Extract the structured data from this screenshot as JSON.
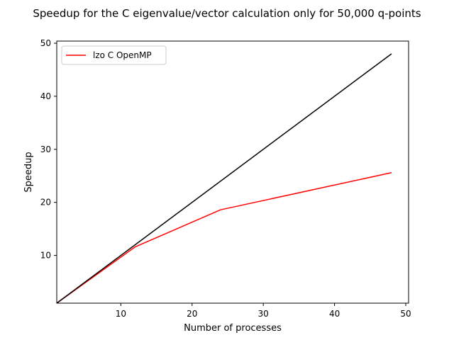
{
  "chart_data": {
    "type": "line",
    "title": "Speedup for the C eigenvalue/vector calculation only for 50,000 q-points",
    "xlabel": "Number of processes",
    "ylabel": "Speedup",
    "xlim": [
      1,
      50.4
    ],
    "ylim": [
      1,
      50.4
    ],
    "xticks": [
      10,
      20,
      30,
      40,
      50
    ],
    "yticks": [
      10,
      20,
      30,
      40,
      50
    ],
    "legend_position": "top-left",
    "series": [
      {
        "name": "lzo C OpenMP",
        "color": "#ff0000",
        "x": [
          1,
          12,
          24,
          48
        ],
        "y": [
          1,
          11.6,
          18.6,
          25.6
        ]
      },
      {
        "color": "#000000",
        "x": [
          1,
          48
        ],
        "y": [
          1,
          48
        ]
      }
    ]
  }
}
